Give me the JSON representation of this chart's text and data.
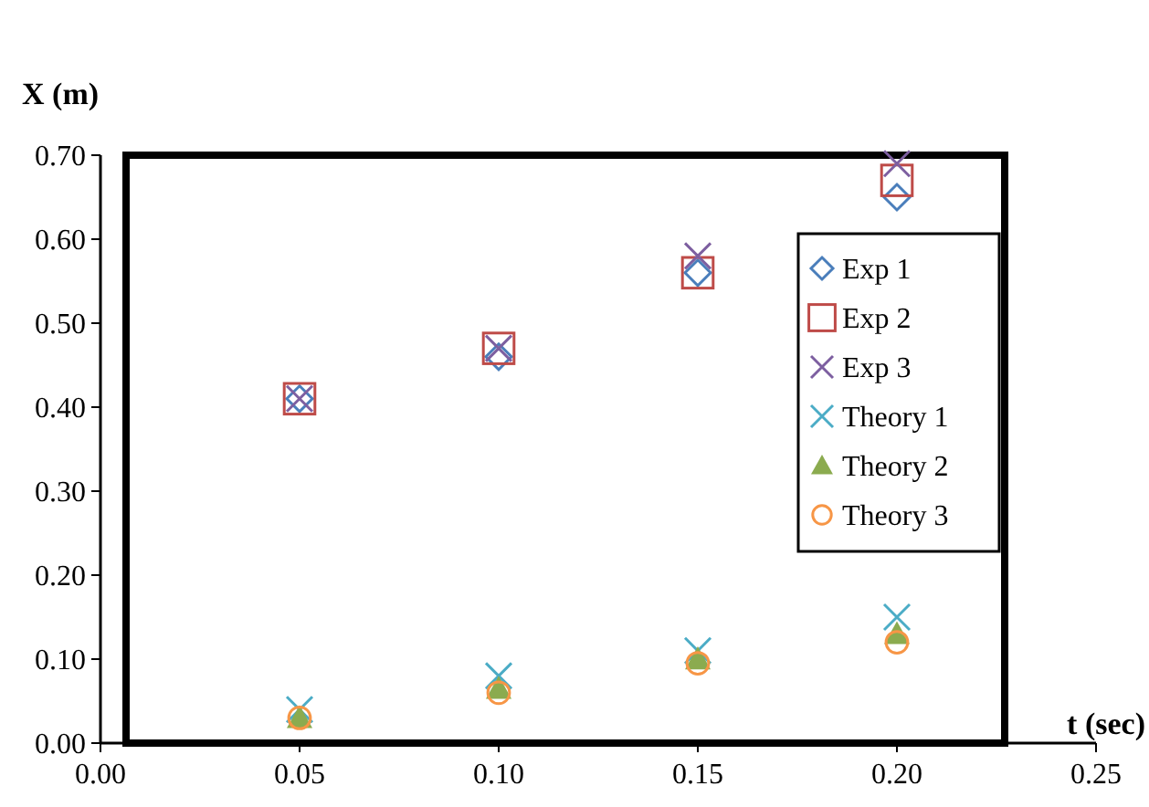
{
  "chart_data": {
    "type": "scatter",
    "xlabel": "t (sec)",
    "ylabel": "X (m)",
    "x": [
      0.05,
      0.1,
      0.15,
      0.2
    ],
    "xlim": [
      0,
      0.25
    ],
    "xticks": [
      {
        "value": 0,
        "label": "0.00"
      },
      {
        "value": 0.05,
        "label": "0.05"
      },
      {
        "value": 0.1,
        "label": "0.10"
      },
      {
        "value": 0.15,
        "label": "0.15"
      },
      {
        "value": 0.2,
        "label": "0.20"
      },
      {
        "value": 0.25,
        "label": "0.25"
      }
    ],
    "ylim": [
      0,
      0.7
    ],
    "yticks": [
      {
        "value": 0,
        "label": "0.00"
      },
      {
        "value": 0.1,
        "label": "0.10"
      },
      {
        "value": 0.2,
        "label": "0.20"
      },
      {
        "value": 0.3,
        "label": "0.30"
      },
      {
        "value": 0.4,
        "label": "0.40"
      },
      {
        "value": 0.5,
        "label": "0.50"
      },
      {
        "value": 0.6,
        "label": "0.60"
      },
      {
        "value": 0.7,
        "label": "0.70"
      }
    ],
    "grid": false,
    "legend": "right",
    "series": [
      {
        "name": "Exp 1",
        "color": "#4a7ebb",
        "marker": "diamond",
        "values": [
          0.41,
          0.46,
          0.56,
          0.65
        ]
      },
      {
        "name": "Exp 2",
        "color": "#be4b48",
        "marker": "square",
        "values": [
          0.41,
          0.47,
          0.56,
          0.67
        ]
      },
      {
        "name": "Exp 3",
        "color": "#7d5fa0",
        "marker": "cross",
        "values": [
          0.41,
          0.47,
          0.58,
          0.69
        ]
      },
      {
        "name": "Theory 1",
        "color": "#4bacc6",
        "marker": "cross",
        "values": [
          0.04,
          0.08,
          0.11,
          0.15
        ]
      },
      {
        "name": "Theory 2",
        "color": "#8bab4f",
        "marker": "triangle",
        "values": [
          0.03,
          0.065,
          0.1,
          0.13
        ]
      },
      {
        "name": "Theory 3",
        "color": "#f79646",
        "marker": "circle",
        "values": [
          0.03,
          0.06,
          0.095,
          0.12
        ]
      }
    ]
  }
}
